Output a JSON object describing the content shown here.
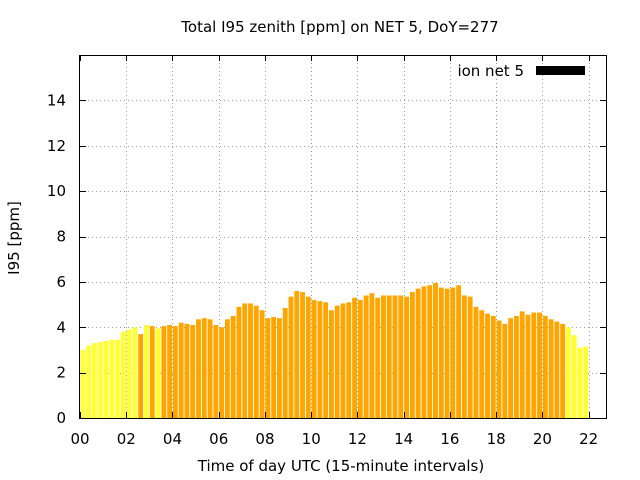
{
  "chart_data": {
    "type": "bar",
    "title": "Total I95 zenith [ppm] on NET 5, DoY=277",
    "xlabel": "Time of day UTC (15-minute intervals)",
    "ylabel": "I95 [ppm]",
    "xlim": [
      0,
      22.75
    ],
    "ylim": [
      0,
      16
    ],
    "x_ticks": [
      "00",
      "02",
      "04",
      "06",
      "08",
      "10",
      "12",
      "14",
      "16",
      "18",
      "20",
      "22"
    ],
    "y_ticks": [
      "0",
      "2",
      "4",
      "6",
      "8",
      "10",
      "12",
      "14"
    ],
    "grid": true,
    "legend_position": "top-right",
    "interval_hours": 0.25,
    "colors": {
      "yellow": "#ffff33",
      "orange": "#ffa500",
      "legend": "#000000"
    },
    "series": [
      {
        "name": "ion net 5",
        "values": [
          3.0,
          3.2,
          3.3,
          3.35,
          3.4,
          3.45,
          3.45,
          3.8,
          3.9,
          4.0,
          3.7,
          4.1,
          4.05,
          3.95,
          4.05,
          4.1,
          4.05,
          4.2,
          4.15,
          4.1,
          4.35,
          4.4,
          4.35,
          4.1,
          4.0,
          4.35,
          4.5,
          4.9,
          5.05,
          5.05,
          4.95,
          4.75,
          4.4,
          4.45,
          4.4,
          4.85,
          5.35,
          5.6,
          5.55,
          5.35,
          5.2,
          5.15,
          5.1,
          4.75,
          4.95,
          5.05,
          5.1,
          5.3,
          5.2,
          5.4,
          5.5,
          5.3,
          5.4,
          5.4,
          5.4,
          5.4,
          5.35,
          5.55,
          5.7,
          5.8,
          5.85,
          5.95,
          5.75,
          5.7,
          5.75,
          5.85,
          5.4,
          5.35,
          4.9,
          4.75,
          4.6,
          4.5,
          4.3,
          4.15,
          4.4,
          4.5,
          4.7,
          4.55,
          4.65,
          4.65,
          4.5,
          4.35,
          4.25,
          4.15,
          4.0,
          3.65,
          3.1,
          3.15
        ],
        "bar_colors": [
          "yellow",
          "yellow",
          "yellow",
          "yellow",
          "yellow",
          "yellow",
          "yellow",
          "yellow",
          "yellow",
          "yellow",
          "orange",
          "yellow",
          "orange",
          "yellow",
          "orange",
          "orange",
          "orange",
          "orange",
          "orange",
          "orange",
          "orange",
          "orange",
          "orange",
          "orange",
          "orange",
          "orange",
          "orange",
          "orange",
          "orange",
          "orange",
          "orange",
          "orange",
          "orange",
          "orange",
          "orange",
          "orange",
          "orange",
          "orange",
          "orange",
          "orange",
          "orange",
          "orange",
          "orange",
          "orange",
          "orange",
          "orange",
          "orange",
          "orange",
          "orange",
          "orange",
          "orange",
          "orange",
          "orange",
          "orange",
          "orange",
          "orange",
          "orange",
          "orange",
          "orange",
          "orange",
          "orange",
          "orange",
          "orange",
          "orange",
          "orange",
          "orange",
          "orange",
          "orange",
          "orange",
          "orange",
          "orange",
          "orange",
          "orange",
          "orange",
          "orange",
          "orange",
          "orange",
          "orange",
          "orange",
          "orange",
          "orange",
          "orange",
          "orange",
          "orange",
          "yellow",
          "yellow",
          "yellow",
          "yellow"
        ]
      }
    ]
  }
}
